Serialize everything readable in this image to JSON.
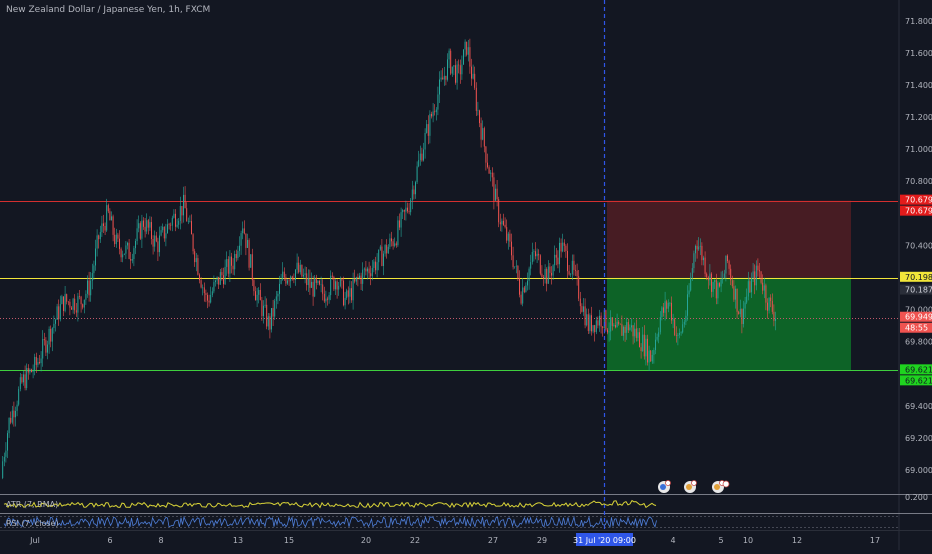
{
  "header": {
    "title": "New Zealand Dollar / Japanese Yen, 1h, FXCM"
  },
  "colors": {
    "background": "#131722",
    "axis_text": "#b2b5be",
    "candle_up": "#26a69a",
    "candle_down": "#ef5350",
    "stop_zone": "#4a1c24",
    "target_zone": "#0d6b28",
    "line_red": "#d32f2f",
    "line_yellow": "#f2e63a",
    "line_green": "#3ecf3e",
    "line_pink": "#c2596a",
    "vline_blue": "#2f56e8",
    "atr_line": "#d8d338",
    "rsi_line": "#4f7fd9"
  },
  "chart_data": {
    "type": "candlestick",
    "title": "New Zealand Dollar / Japanese Yen, 1h, FXCM",
    "ylim": [
      68.85,
      71.93
    ],
    "price_scale_ticks": [
      "71.800",
      "71.600",
      "71.400",
      "71.200",
      "71.000",
      "70.800",
      "70.400",
      "70.000",
      "69.800",
      "69.400",
      "69.200",
      "69.000"
    ],
    "time_axis_ticks": [
      "Jul",
      "6",
      "8",
      "13",
      "15",
      "20",
      "22",
      "27",
      "29",
      "4",
      "5",
      "10",
      "12",
      "17"
    ],
    "time_cursor_label": "31 Jul '20   09:00",
    "horizontal_levels": [
      {
        "name": "stop",
        "value": 70.679,
        "color": "#d32f2f"
      },
      {
        "name": "entry",
        "value": 70.198,
        "color": "#f2e63a"
      },
      {
        "name": "current",
        "value": 69.949,
        "color": "#c2596a"
      },
      {
        "name": "target",
        "value": 69.621,
        "color": "#3ecf3e"
      }
    ],
    "price_labels": [
      {
        "value": 70.679,
        "text": "70.679",
        "bg": "#e21b1b",
        "fg": "#ffffff"
      },
      {
        "value": 70.679,
        "text": "70.679",
        "bg": "#e21b1b",
        "fg": "#ffffff",
        "offset": 1
      },
      {
        "value": 70.198,
        "text": "70.198",
        "bg": "#f2e63a",
        "fg": "#131722"
      },
      {
        "value": 70.187,
        "text": "70.187",
        "bg": "#2a2e39",
        "fg": "#d1d4dc",
        "offset": 1
      },
      {
        "value": 69.949,
        "text": "69.949",
        "bg": "#ef5350",
        "fg": "#ffffff"
      },
      {
        "value": 69.949,
        "text": "48:55",
        "bg": "#ef5350",
        "fg": "#ffffff",
        "offset": 1
      },
      {
        "value": 69.621,
        "text": "69.621",
        "bg": "#1fd41f",
        "fg": "#131722"
      },
      {
        "value": 69.621,
        "text": "69.621",
        "bg": "#1fd41f",
        "fg": "#131722",
        "offset": 1
      }
    ],
    "price_path": [
      [
        0,
        68.95
      ],
      [
        0.01,
        69.3
      ],
      [
        0.025,
        69.55
      ],
      [
        0.04,
        69.65
      ],
      [
        0.055,
        69.85
      ],
      [
        0.07,
        70.05
      ],
      [
        0.09,
        70.05
      ],
      [
        0.1,
        70.15
      ],
      [
        0.11,
        70.45
      ],
      [
        0.12,
        70.6
      ],
      [
        0.13,
        70.4
      ],
      [
        0.145,
        70.35
      ],
      [
        0.16,
        70.55
      ],
      [
        0.175,
        70.4
      ],
      [
        0.19,
        70.55
      ],
      [
        0.205,
        70.65
      ],
      [
        0.215,
        70.4
      ],
      [
        0.23,
        70.05
      ],
      [
        0.245,
        70.2
      ],
      [
        0.26,
        70.3
      ],
      [
        0.27,
        70.55
      ],
      [
        0.285,
        70.1
      ],
      [
        0.3,
        69.9
      ],
      [
        0.315,
        70.2
      ],
      [
        0.33,
        70.25
      ],
      [
        0.345,
        70.15
      ],
      [
        0.36,
        70.1
      ],
      [
        0.375,
        70.2
      ],
      [
        0.385,
        70.05
      ],
      [
        0.4,
        70.2
      ],
      [
        0.42,
        70.3
      ],
      [
        0.44,
        70.45
      ],
      [
        0.455,
        70.65
      ],
      [
        0.47,
        71.0
      ],
      [
        0.485,
        71.3
      ],
      [
        0.5,
        71.55
      ],
      [
        0.51,
        71.45
      ],
      [
        0.52,
        71.65
      ],
      [
        0.53,
        71.3
      ],
      [
        0.54,
        71.0
      ],
      [
        0.555,
        70.6
      ],
      [
        0.57,
        70.35
      ],
      [
        0.58,
        70.1
      ],
      [
        0.595,
        70.35
      ],
      [
        0.61,
        70.2
      ],
      [
        0.625,
        70.4
      ],
      [
        0.64,
        70.2
      ],
      [
        0.655,
        69.9
      ],
      [
        0.67,
        69.95
      ],
      [
        0.685,
        69.85
      ],
      [
        0.7,
        69.9
      ],
      [
        0.715,
        69.8
      ],
      [
        0.725,
        69.7
      ],
      [
        0.735,
        69.95
      ],
      [
        0.745,
        70.05
      ],
      [
        0.755,
        69.8
      ],
      [
        0.765,
        70.0
      ],
      [
        0.775,
        70.45
      ],
      [
        0.79,
        70.2
      ],
      [
        0.8,
        70.1
      ],
      [
        0.81,
        70.3
      ],
      [
        0.825,
        69.95
      ],
      [
        0.835,
        70.15
      ],
      [
        0.845,
        70.25
      ],
      [
        0.855,
        70.05
      ],
      [
        0.865,
        69.95
      ]
    ]
  },
  "indicators": {
    "atr": {
      "label": "ATR (7, RMA)",
      "value_tick": "0.200"
    },
    "rsi": {
      "label": "RSI (7, close)"
    }
  },
  "event_icons": [
    "flag-event-icon",
    "flag-event-icon",
    "flag-event-icon"
  ]
}
